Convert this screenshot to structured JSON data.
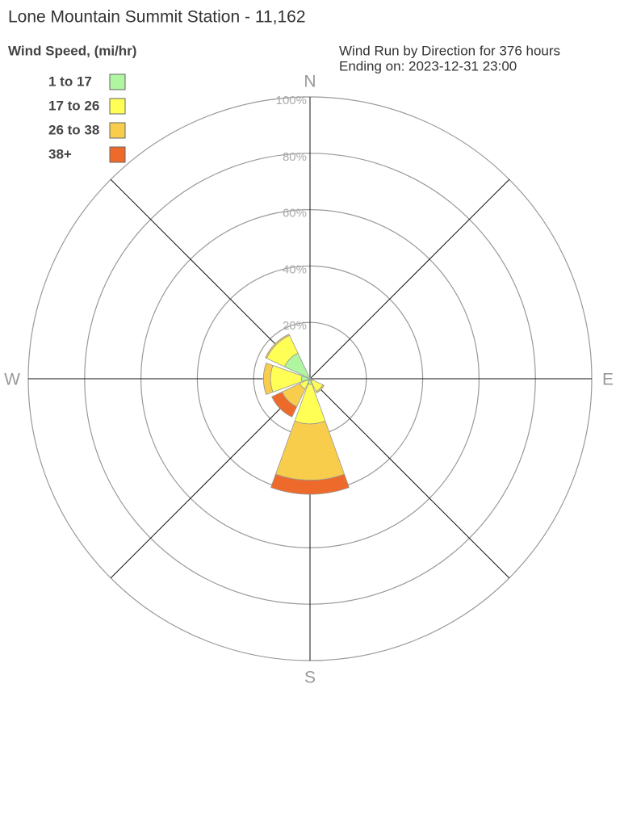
{
  "chart_data": {
    "type": "windrose",
    "title": "Lone Mountain Summit Station - 11,162",
    "legend_title": "Wind Speed, (mi/hr)",
    "subtitle": "Wind Run by Direction for 376 hours",
    "subtitle2": "Ending on: 2023-12-31 23:00",
    "categories": [
      "N",
      null,
      "E",
      null,
      "S",
      null,
      "W",
      null
    ],
    "series": [
      {
        "name": "1 to 17",
        "color": "#b0f5a0",
        "values": [
          0.5,
          0.3,
          0.3,
          1,
          2,
          1,
          3,
          10
        ]
      },
      {
        "name": "17 to 26",
        "color": "#ffff55",
        "values": [
          0,
          0,
          0,
          4,
          14,
          3,
          11,
          7
        ]
      },
      {
        "name": "26 to 38",
        "color": "#f8cd4c",
        "values": [
          0,
          0,
          0,
          0.5,
          20,
          7,
          2.5,
          0.5
        ]
      },
      {
        "name": "38+",
        "color": "#ee6a2a",
        "values": [
          0,
          0,
          0,
          0,
          5,
          4,
          0,
          0
        ]
      }
    ],
    "rlim": [
      0,
      100
    ],
    "rticks": [
      {
        "value": 20,
        "label": "20%"
      },
      {
        "value": 40,
        "label": "40%"
      },
      {
        "value": 60,
        "label": "60%"
      },
      {
        "value": 80,
        "label": "80%"
      },
      {
        "value": 100,
        "label": "100%"
      }
    ],
    "grid": true
  }
}
